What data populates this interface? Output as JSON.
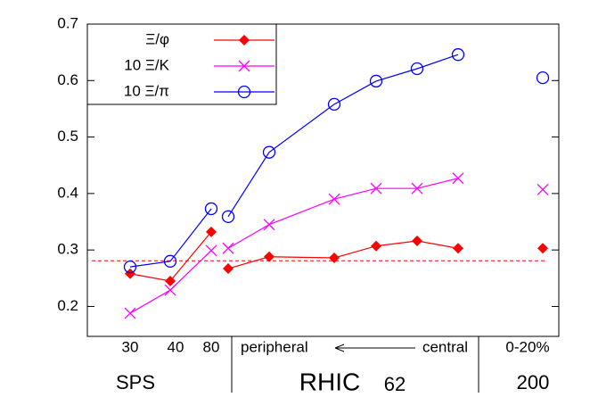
{
  "chart_data": {
    "type": "line",
    "categories": [
      "30",
      "40",
      "80",
      null,
      "peripheral",
      null,
      null,
      null,
      null,
      "central",
      null,
      "0-20%"
    ],
    "groups": [
      "SPS",
      "RHIC",
      "62",
      "200"
    ],
    "series": [
      {
        "name": "Ξ/φ",
        "color": "#ff0000",
        "marker": "diamond",
        "values": [
          0.258,
          0.245,
          0.332,
          null,
          0.267,
          0.288,
          0.286,
          0.307,
          0.316,
          0.303,
          null,
          0.303
        ]
      },
      {
        "name": "10 Ξ/K",
        "color": "#ff00ff",
        "marker": "cross",
        "values": [
          0.188,
          0.229,
          0.299,
          null,
          0.303,
          0.345,
          0.39,
          0.409,
          0.409,
          0.427,
          null,
          0.407
        ]
      },
      {
        "name": "10 Ξ/π",
        "color": "#0000ff",
        "marker": "circle",
        "values": [
          0.27,
          0.28,
          0.373,
          null,
          0.359,
          0.473,
          0.558,
          0.599,
          0.621,
          0.646,
          null,
          0.605
        ]
      }
    ],
    "reference_line": {
      "value": 0.281,
      "color": "#ff0000"
    },
    "ylim": [
      0.147,
      0.7
    ],
    "yticks": [
      0.2,
      0.3,
      0.4,
      0.5,
      0.6,
      0.7
    ],
    "legend": "top-left"
  }
}
